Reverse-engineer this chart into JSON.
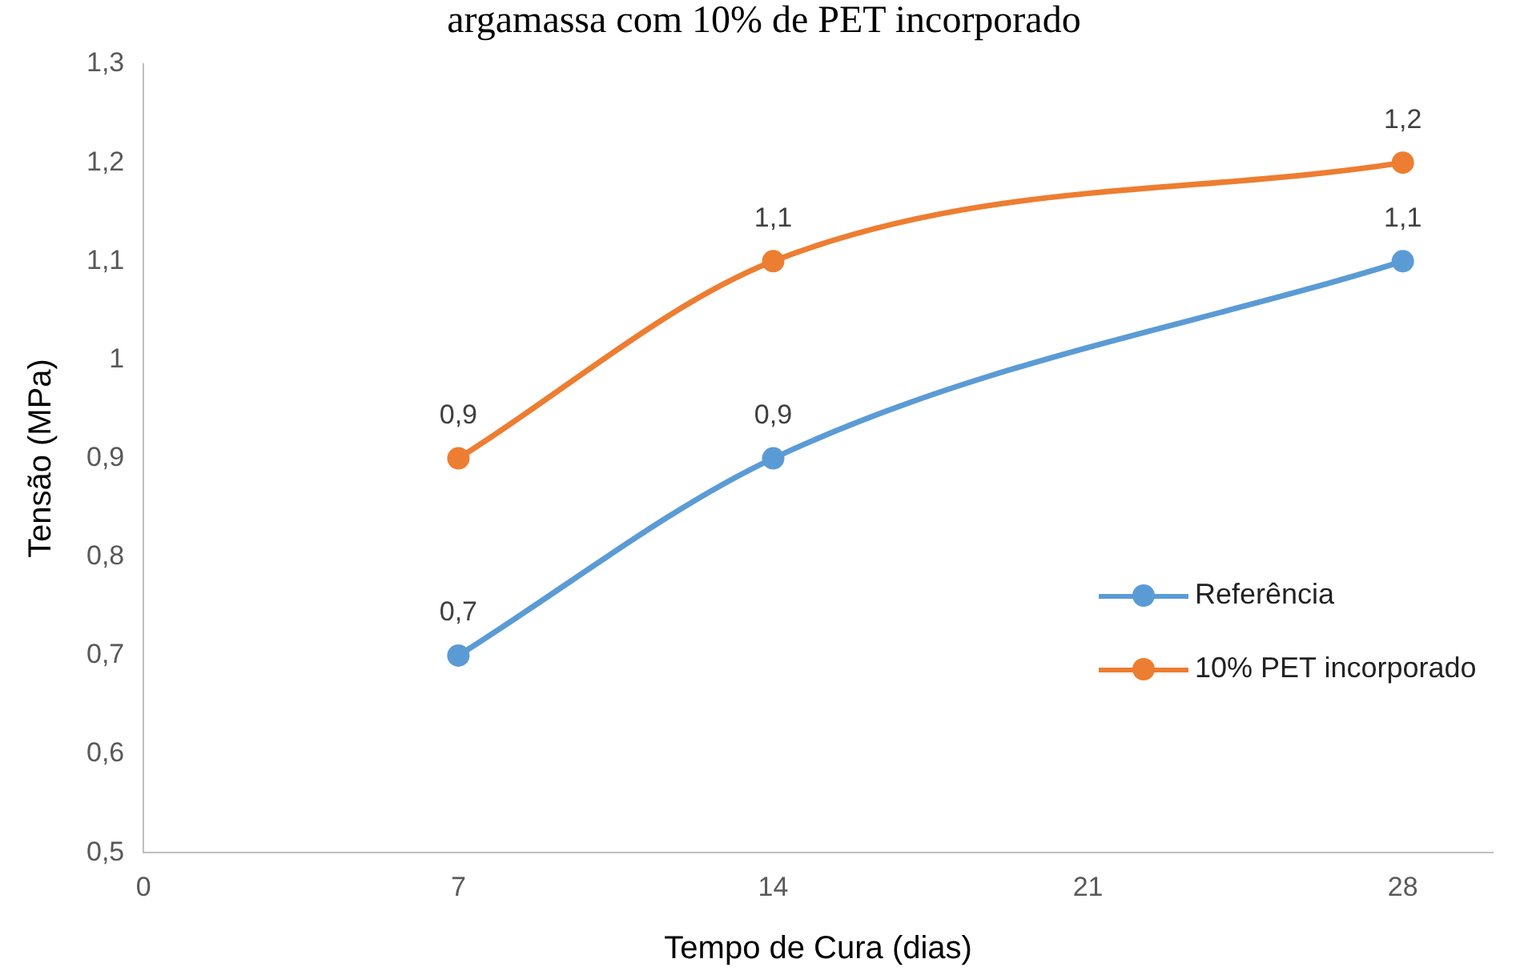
{
  "chart_data": {
    "type": "line",
    "title": "argamassa com 10% de PET incorporado",
    "xlabel": "Tempo de Cura (dias)",
    "ylabel": "Tensão (MPa)",
    "xlim": [
      0,
      30
    ],
    "xticks": [
      0,
      7,
      14,
      21,
      28
    ],
    "ylim": [
      0.5,
      1.3
    ],
    "yticks": [
      {
        "value": 0.5,
        "label": "0,5"
      },
      {
        "value": 0.6,
        "label": "0,6"
      },
      {
        "value": 0.7,
        "label": "0,7"
      },
      {
        "value": 0.8,
        "label": "0,8"
      },
      {
        "value": 0.9,
        "label": "0,9"
      },
      1,
      {
        "value": 1.1,
        "label": "1,1"
      },
      {
        "value": 1.2,
        "label": "1,2"
      },
      {
        "value": 1.3,
        "label": "1,3"
      }
    ],
    "grid": false,
    "legend": "right",
    "marker": "circle",
    "line_style": "solid",
    "series": [
      {
        "name": "Referência",
        "color": "#5b9bd5",
        "x": [
          7,
          14,
          28
        ],
        "values": [
          0.7,
          0.9,
          1.1
        ],
        "value_labels": [
          "0,7",
          "0,9",
          "1,1"
        ]
      },
      {
        "name": "10% PET incorporado",
        "color": "#ed7d31",
        "x": [
          7,
          14,
          28
        ],
        "values": [
          0.9,
          1.1,
          1.2
        ],
        "value_labels": [
          "0,9",
          "1,1",
          "1,2"
        ]
      }
    ]
  }
}
